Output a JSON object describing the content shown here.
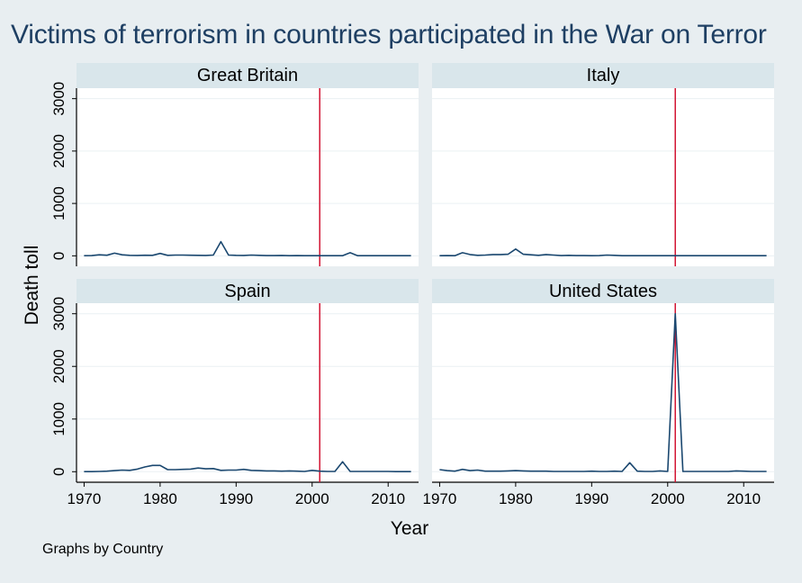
{
  "chart_data": {
    "type": "line",
    "title": "Victims of terrorism in countries participated in the War on Terror",
    "xlabel": "Year",
    "ylabel": "Death toll",
    "note": "Graphs by Country",
    "xlim": [
      1969,
      2014
    ],
    "ylim": [
      -200,
      3200
    ],
    "xticks": [
      1970,
      1980,
      1990,
      2000,
      2010
    ],
    "yticks": [
      0,
      1000,
      2000,
      3000
    ],
    "reference_line": {
      "x": 2001,
      "color": "#d21432"
    },
    "colors": {
      "series": "#1a476f",
      "strip": "#d9e6eb",
      "background": "#e8eef1",
      "plot": "#ffffff",
      "title": "#1e3f63"
    },
    "panels": [
      {
        "name": "Great Britain",
        "x": [
          1970,
          1971,
          1972,
          1973,
          1974,
          1975,
          1976,
          1977,
          1978,
          1979,
          1980,
          1981,
          1982,
          1983,
          1984,
          1985,
          1986,
          1987,
          1988,
          1989,
          1990,
          1991,
          1992,
          1993,
          1994,
          1995,
          1996,
          1997,
          1998,
          1999,
          2000,
          2001,
          2002,
          2003,
          2004,
          2005,
          2006,
          2007,
          2008,
          2009,
          2010,
          2011,
          2012,
          2013
        ],
        "y": [
          2,
          5,
          20,
          12,
          50,
          20,
          10,
          8,
          12,
          10,
          45,
          10,
          15,
          15,
          12,
          10,
          8,
          15,
          270,
          15,
          10,
          8,
          15,
          10,
          5,
          5,
          8,
          3,
          5,
          2,
          2,
          2,
          2,
          2,
          2,
          60,
          2,
          2,
          2,
          2,
          2,
          2,
          2,
          2
        ]
      },
      {
        "name": "Italy",
        "x": [
          1970,
          1971,
          1972,
          1973,
          1974,
          1975,
          1976,
          1977,
          1978,
          1979,
          1980,
          1981,
          1982,
          1983,
          1984,
          1985,
          1986,
          1987,
          1988,
          1989,
          1990,
          1991,
          1992,
          1993,
          1994,
          1995,
          1996,
          1997,
          1998,
          1999,
          2000,
          2001,
          2002,
          2003,
          2004,
          2005,
          2006,
          2007,
          2008,
          2009,
          2010,
          2011,
          2012,
          2013
        ],
        "y": [
          2,
          5,
          2,
          60,
          25,
          10,
          15,
          25,
          25,
          30,
          130,
          30,
          20,
          10,
          25,
          15,
          5,
          10,
          5,
          5,
          3,
          5,
          15,
          10,
          3,
          2,
          2,
          2,
          2,
          2,
          2,
          2,
          2,
          2,
          2,
          2,
          2,
          2,
          2,
          2,
          2,
          2,
          2,
          2
        ]
      },
      {
        "name": "Spain",
        "x": [
          1970,
          1971,
          1972,
          1973,
          1974,
          1975,
          1976,
          1977,
          1978,
          1979,
          1980,
          1981,
          1982,
          1983,
          1984,
          1985,
          1986,
          1987,
          1988,
          1989,
          1990,
          1991,
          1992,
          1993,
          1994,
          1995,
          1996,
          1997,
          1998,
          1999,
          2000,
          2001,
          2002,
          2003,
          2004,
          2005,
          2006,
          2007,
          2008,
          2009,
          2010,
          2011,
          2012,
          2013
        ],
        "y": [
          2,
          2,
          5,
          10,
          20,
          30,
          25,
          50,
          90,
          120,
          120,
          40,
          40,
          45,
          50,
          70,
          55,
          60,
          25,
          30,
          30,
          45,
          25,
          20,
          15,
          15,
          10,
          15,
          10,
          5,
          25,
          10,
          5,
          5,
          190,
          5,
          5,
          5,
          5,
          5,
          5,
          2,
          2,
          2
        ]
      },
      {
        "name": "United States",
        "x": [
          1970,
          1971,
          1972,
          1973,
          1974,
          1975,
          1976,
          1977,
          1978,
          1979,
          1980,
          1981,
          1982,
          1983,
          1984,
          1985,
          1986,
          1987,
          1988,
          1989,
          1990,
          1991,
          1992,
          1993,
          1994,
          1995,
          1996,
          1997,
          1998,
          1999,
          2000,
          2001,
          2002,
          2003,
          2004,
          2005,
          2006,
          2007,
          2008,
          2009,
          2010,
          2011,
          2012,
          2013
        ],
        "y": [
          40,
          20,
          10,
          45,
          20,
          30,
          10,
          10,
          10,
          15,
          20,
          15,
          10,
          10,
          10,
          5,
          5,
          5,
          5,
          5,
          10,
          5,
          5,
          10,
          5,
          170,
          10,
          5,
          5,
          15,
          5,
          3000,
          5,
          5,
          5,
          5,
          5,
          5,
          5,
          15,
          10,
          5,
          5,
          5
        ]
      }
    ]
  }
}
